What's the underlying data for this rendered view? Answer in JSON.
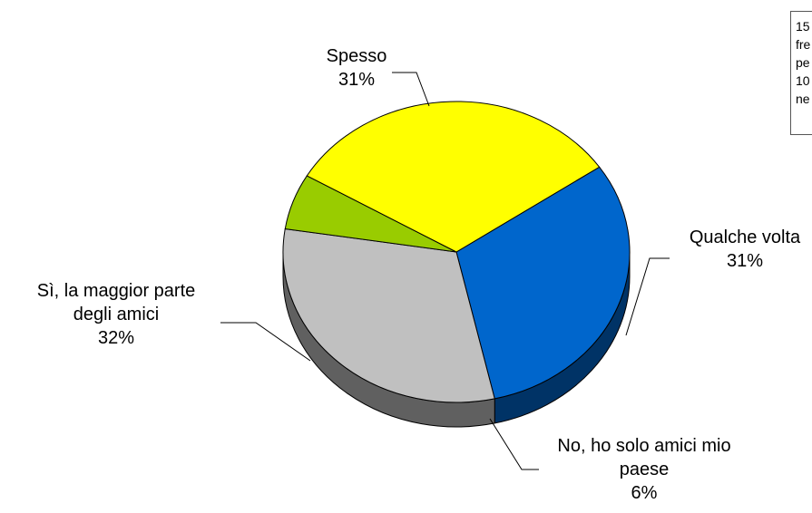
{
  "chart_data": {
    "type": "pie",
    "style": "3d",
    "title": "",
    "slices": [
      {
        "label_lines": [
          "Spesso"
        ],
        "label": "Spesso",
        "value": 31,
        "value_label": "31%",
        "color": "#0066CC",
        "side_color": "#003366"
      },
      {
        "label_lines": [
          "Qualche volta"
        ],
        "label": "Qualche volta",
        "value": 31,
        "value_label": "31%",
        "color": "#C0C0C0",
        "side_color": "#606060"
      },
      {
        "label_lines": [
          "No, ho solo amici mio",
          "paese"
        ],
        "label": "No, ho solo amici mio paese",
        "value": 6,
        "value_label": "6%",
        "color": "#99CC00",
        "side_color": "#4D6600"
      },
      {
        "label_lines": [
          "Sì, la maggior parte",
          "degli amici"
        ],
        "label": "Sì, la maggior parte degli amici",
        "value": 32,
        "value_label": "32%",
        "color": "#FFFF00",
        "side_color": "#808000"
      }
    ]
  },
  "note": {
    "lines": [
      "15",
      "fre",
      "pe",
      "10",
      "ne"
    ]
  }
}
